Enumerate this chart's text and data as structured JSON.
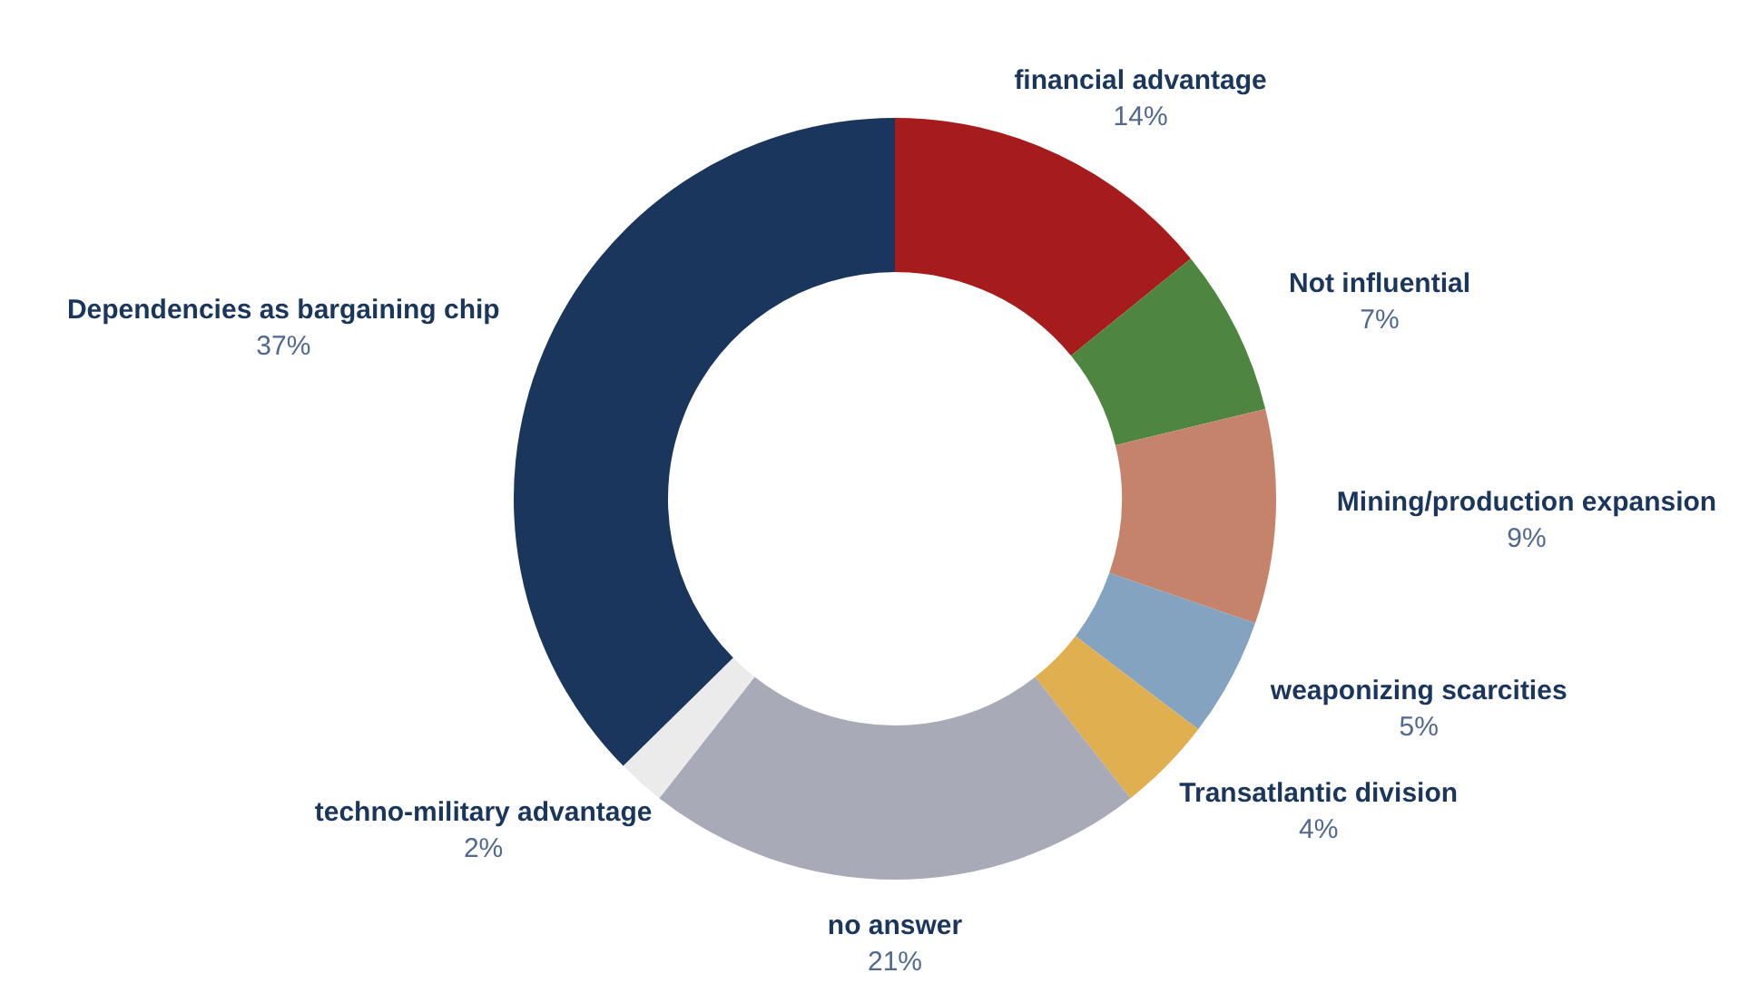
{
  "chart_data": {
    "type": "donut",
    "categories": [
      "financial advantage",
      "Not influential",
      "Mining/production expansion",
      "weaponizing scarcities",
      "Transatlantic division",
      "no answer",
      "techno-military advantage",
      "Dependencies as bargaining chip"
    ],
    "values": [
      14,
      7,
      9,
      5,
      4,
      21,
      2,
      37
    ],
    "value_labels": [
      "14%",
      "7%",
      "9%",
      "5%",
      "4%",
      "21%",
      "2%",
      "37%"
    ],
    "colors": [
      "#a61b1b",
      "#4e8540",
      "#c4836a",
      "#84a3c0",
      "#e0b050",
      "#a9aab8",
      "#ebebeb",
      "#1b365d"
    ]
  }
}
